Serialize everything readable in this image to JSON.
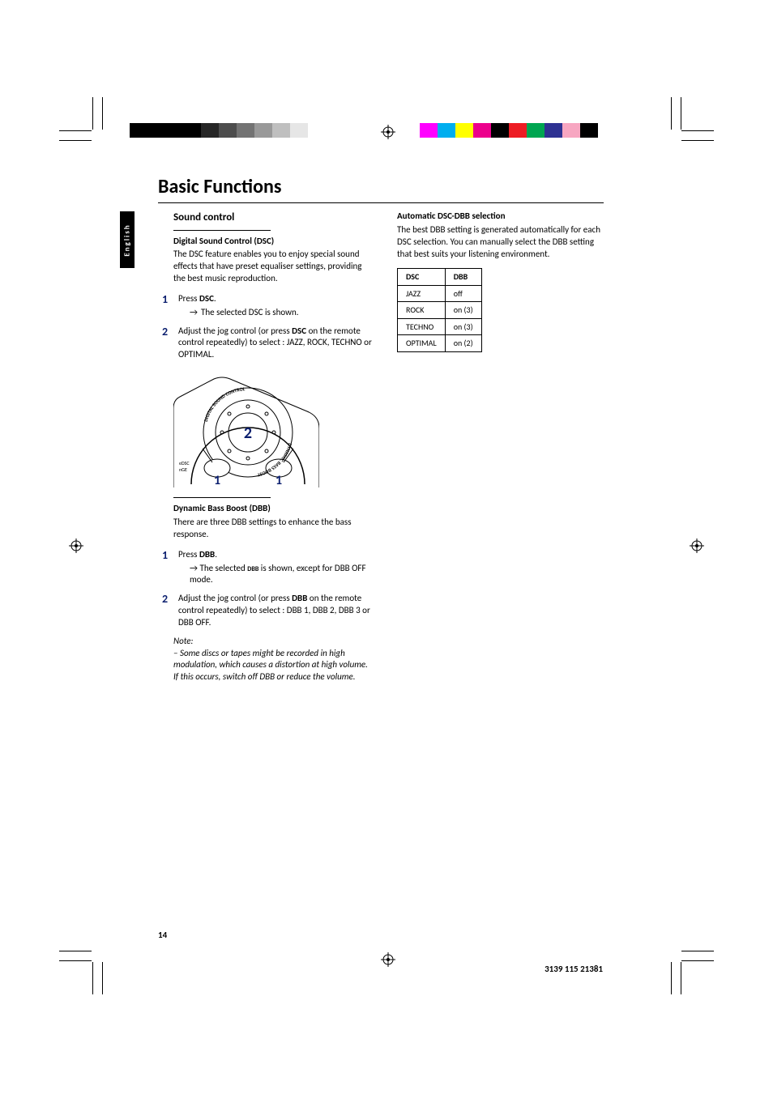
{
  "lang_tab": "English",
  "page_title": "Basic Functions",
  "page_number": "14",
  "doc_id": "3139 115 21381",
  "colors": {
    "step_num": "#0a1e6e",
    "left_bar": [
      "#000000",
      "#000000",
      "#000000",
      "#000000",
      "#262626",
      "#4d4d4d",
      "#737373",
      "#999999",
      "#bfbfbf",
      "#e6e6e6"
    ],
    "right_bar": [
      "#ff00ff",
      "#00aeef",
      "#ffff00",
      "#ec008c",
      "#000000",
      "#ed1c24",
      "#00a651",
      "#2e3192",
      "#f7a6c1",
      "#000000"
    ]
  },
  "left": {
    "section": "Sound control",
    "dsc_head": "Digital Sound Control (DSC)",
    "dsc_body": "The DSC feature enables you to enjoy special sound effects that have preset equaliser settings, providing the best music reproduction.",
    "dsc_step1_a": "Press ",
    "dsc_step1_b": "DSC",
    "dsc_step1_c": ".",
    "dsc_step1_sub": "The selected DSC is shown.",
    "dsc_step2_a": "Adjust the jog control (or press ",
    "dsc_step2_b": "DSC",
    "dsc_step2_c": " on the remote control repeatedly) to select : JAZZ, ROCK, TECHNO or OPTIMAL.",
    "dial": {
      "outer_top": "DIGITAL SOUND CONTROL",
      "outer_bottom": "DYNAMIC BASS BOOST",
      "center_label": "2",
      "button_labels": [
        "1",
        "1"
      ],
      "edge_label": "eDSC\nnGE"
    },
    "dbb_head": "Dynamic Bass Boost (DBB)",
    "dbb_body": "There are three DBB settings to enhance the bass response.",
    "dbb_step1_a": "Press ",
    "dbb_step1_b": "DBB",
    "dbb_step1_c": ".",
    "dbb_step1_sub_a": "The selected ",
    "dbb_step1_sub_b": "DBB",
    "dbb_step1_sub_c": " is shown, except for DBB OFF mode.",
    "dbb_step2_a": "Adjust the jog control (or press ",
    "dbb_step2_b": "DBB",
    "dbb_step2_c": " on the remote control repeatedly) to select : DBB 1, DBB 2, DBB 3 or DBB OFF.",
    "note_head": "Note:",
    "note_body": "–   Some discs or tapes might be recorded in high modulation, which causes a distortion at high volume. If this occurs, switch off DBB or reduce the volume."
  },
  "right": {
    "auto_head": "Automatic DSC-DBB selection",
    "auto_body": "The best DBB setting is generated automatically for each DSC selection. You can manually select the DBB setting that best suits your listening environment.",
    "table": {
      "columns": [
        "DSC",
        "DBB"
      ],
      "rows": [
        [
          "JAZZ",
          "off"
        ],
        [
          "ROCK",
          "on (3)"
        ],
        [
          "TECHNO",
          "on (3)"
        ],
        [
          "OPTIMAL",
          "on (2)"
        ]
      ]
    }
  }
}
